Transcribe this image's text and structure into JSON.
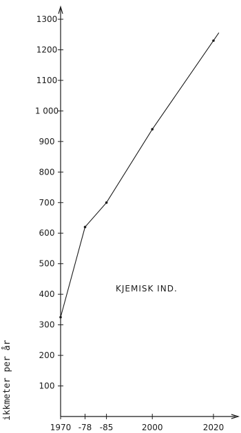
{
  "chart_data": {
    "type": "line",
    "title": "",
    "xlabel": "",
    "ylabel": "ikkmeter per år",
    "x": [
      1970,
      1978,
      1985,
      2000,
      2020
    ],
    "x_tick_labels": [
      "1970",
      "-78",
      "-85",
      "2000",
      "2020"
    ],
    "y_tick_labels": [
      "100",
      "200",
      "300",
      "400",
      "500",
      "600",
      "700",
      "800",
      "900",
      "1 000",
      "1100",
      "1200",
      "1300"
    ],
    "y_ticks": [
      100,
      200,
      300,
      400,
      500,
      600,
      700,
      800,
      900,
      1000,
      1100,
      1200,
      1300
    ],
    "ylim": [
      0,
      1300
    ],
    "series": [
      {
        "values": [
          325,
          620,
          700,
          940,
          1230
        ]
      }
    ],
    "annotations": [
      "KJEMISK IND."
    ],
    "grid": false,
    "colors": {
      "line": "#1a1a1a",
      "background": "#ffffff"
    }
  }
}
